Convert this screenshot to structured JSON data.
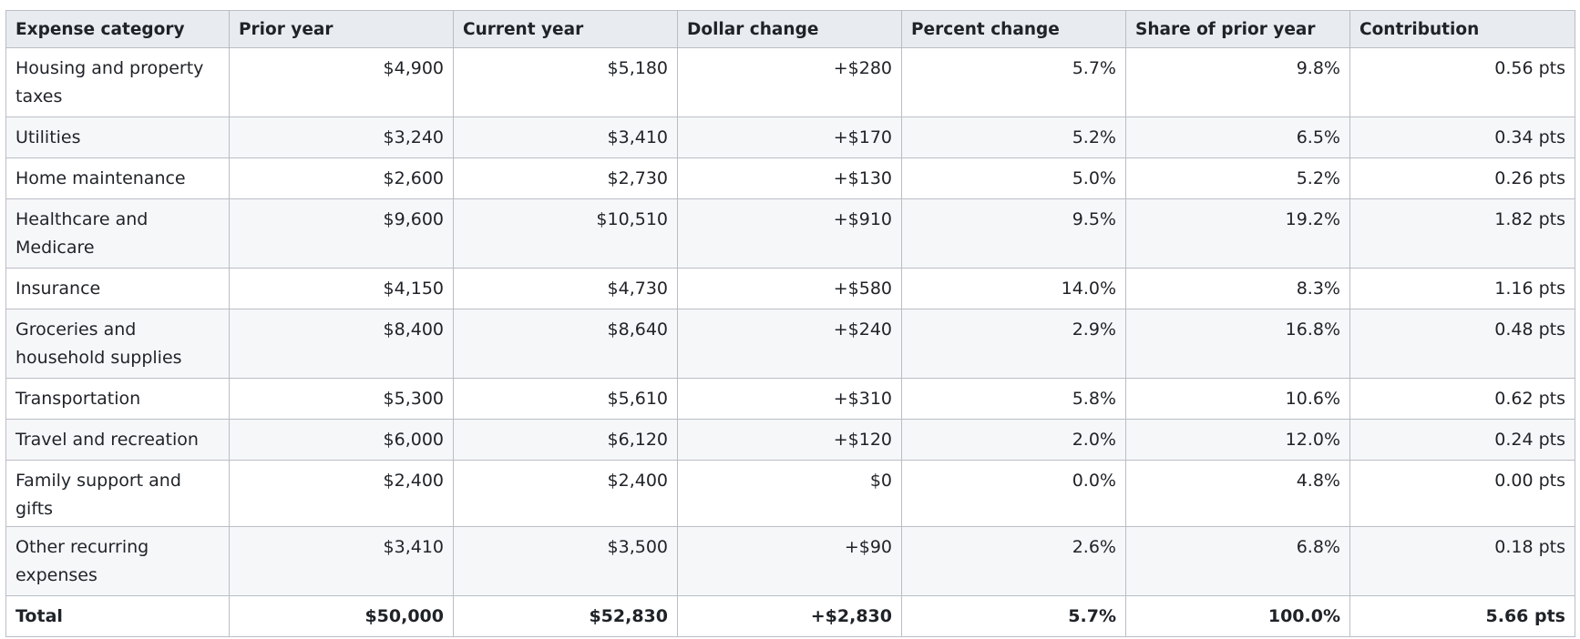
{
  "table": {
    "headers": [
      "Expense category",
      "Prior year",
      "Current year",
      "Dollar change",
      "Percent change",
      "Share of prior year",
      "Contribution"
    ],
    "rows": [
      {
        "category": "Housing and property taxes",
        "prior": "$4,900",
        "current": "$5,180",
        "dollar_change": "+$280",
        "percent_change": "5.7%",
        "share": "9.8%",
        "contribution": "0.56 pts"
      },
      {
        "category": "Utilities",
        "prior": "$3,240",
        "current": "$3,410",
        "dollar_change": "+$170",
        "percent_change": "5.2%",
        "share": "6.5%",
        "contribution": "0.34 pts"
      },
      {
        "category": "Home maintenance",
        "prior": "$2,600",
        "current": "$2,730",
        "dollar_change": "+$130",
        "percent_change": "5.0%",
        "share": "5.2%",
        "contribution": "0.26 pts"
      },
      {
        "category": "Healthcare and Medicare",
        "prior": "$9,600",
        "current": "$10,510",
        "dollar_change": "+$910",
        "percent_change": "9.5%",
        "share": "19.2%",
        "contribution": "1.82 pts"
      },
      {
        "category": "Insurance",
        "prior": "$4,150",
        "current": "$4,730",
        "dollar_change": "+$580",
        "percent_change": "14.0%",
        "share": "8.3%",
        "contribution": "1.16 pts"
      },
      {
        "category": "Groceries and household supplies",
        "prior": "$8,400",
        "current": "$8,640",
        "dollar_change": "+$240",
        "percent_change": "2.9%",
        "share": "16.8%",
        "contribution": "0.48 pts"
      },
      {
        "category": "Transportation",
        "prior": "$5,300",
        "current": "$5,610",
        "dollar_change": "+$310",
        "percent_change": "5.8%",
        "share": "10.6%",
        "contribution": "0.62 pts"
      },
      {
        "category": "Travel and recreation",
        "prior": "$6,000",
        "current": "$6,120",
        "dollar_change": "+$120",
        "percent_change": "2.0%",
        "share": "12.0%",
        "contribution": "0.24 pts"
      },
      {
        "category": "Family support and gifts",
        "prior": "$2,400",
        "current": "$2,400",
        "dollar_change": "$0",
        "percent_change": "0.0%",
        "share": "4.8%",
        "contribution": "0.00 pts"
      },
      {
        "category": "Other recurring expenses",
        "prior": "$3,410",
        "current": "$3,500",
        "dollar_change": "+$90",
        "percent_change": "2.6%",
        "share": "6.8%",
        "contribution": "0.18 pts"
      }
    ],
    "total": {
      "category": "Total",
      "prior": "$50,000",
      "current": "$52,830",
      "dollar_change": "+$2,830",
      "percent_change": "5.7%",
      "share": "100.0%",
      "contribution": "5.66 pts"
    }
  }
}
